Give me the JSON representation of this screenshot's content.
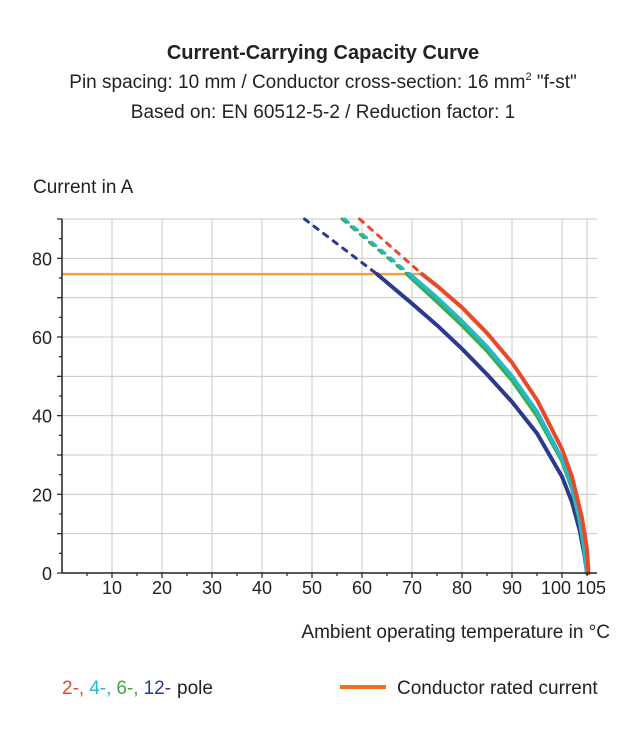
{
  "chart_data": {
    "type": "line",
    "title": "Current-Carrying Capacity Curve",
    "subtitle_line1": "Pin spacing: 10 mm / Conductor cross-section: 16 mm",
    "subtitle_line1_sup": "2",
    "subtitle_line1_tail": " \"f-st\"",
    "subtitle_line2": "Based on: EN 60512-5-2 / Reduction factor: 1",
    "ylabel": "Current in A",
    "xlabel": "Ambient operating temperature in °C",
    "xlim": [
      0,
      107
    ],
    "ylim": [
      0,
      90
    ],
    "x_ticks": [
      10,
      20,
      30,
      40,
      50,
      60,
      70,
      80,
      90,
      100,
      105
    ],
    "y_ticks": [
      0,
      20,
      40,
      60,
      80
    ],
    "grid": true,
    "series": [
      {
        "name": "2-",
        "color": "#e8492a",
        "dashed": [
          [
            59.5,
            90
          ],
          [
            72,
            76
          ]
        ],
        "solid": [
          [
            72,
            76
          ],
          [
            75,
            73
          ],
          [
            80,
            67.5
          ],
          [
            85,
            61
          ],
          [
            90,
            53.5
          ],
          [
            95,
            44
          ],
          [
            100,
            31.5
          ],
          [
            102,
            24.5
          ],
          [
            104,
            14
          ],
          [
            105,
            6
          ],
          [
            105.3,
            0
          ]
        ]
      },
      {
        "name": "4-",
        "color": "#27b7c8",
        "dashed": [
          [
            56.5,
            90
          ],
          [
            69.5,
            76
          ]
        ],
        "solid": [
          [
            69.5,
            76
          ],
          [
            75,
            70
          ],
          [
            80,
            64
          ],
          [
            85,
            57.5
          ],
          [
            90,
            50
          ],
          [
            95,
            41
          ],
          [
            100,
            29
          ],
          [
            102,
            22
          ],
          [
            103.5,
            14
          ],
          [
            104.5,
            6
          ],
          [
            105,
            0
          ]
        ]
      },
      {
        "name": "6-",
        "color": "#3daa48",
        "dashed": [
          [
            56,
            90
          ],
          [
            69,
            76
          ]
        ],
        "solid": [
          [
            69,
            76
          ],
          [
            75,
            69
          ],
          [
            80,
            63
          ],
          [
            85,
            56.5
          ],
          [
            90,
            49
          ],
          [
            95,
            40
          ],
          [
            100,
            28.5
          ],
          [
            102,
            21.5
          ],
          [
            103.5,
            13.5
          ],
          [
            104.5,
            5.5
          ],
          [
            105,
            0
          ]
        ]
      },
      {
        "name": "12-",
        "color": "#2b3a8f",
        "dashed": [
          [
            48.5,
            90
          ],
          [
            63,
            76
          ]
        ],
        "solid": [
          [
            63,
            76
          ],
          [
            70,
            68.5
          ],
          [
            75,
            63
          ],
          [
            80,
            57
          ],
          [
            85,
            50.5
          ],
          [
            90,
            43.5
          ],
          [
            95,
            35.5
          ],
          [
            100,
            24.5
          ],
          [
            102,
            18
          ],
          [
            103.5,
            11
          ],
          [
            104.5,
            4.5
          ],
          [
            105,
            0
          ]
        ]
      }
    ],
    "rated_current": {
      "name": "Conductor rated current",
      "color": "#f4a13a",
      "legend_color": "#f26e1f",
      "value": 76,
      "x_end": 72
    },
    "legend": {
      "pole_suffix": "pole",
      "pole_labels": [
        {
          "text": "2-,",
          "color": "#e8492a"
        },
        {
          "text": "4-,",
          "color": "#27b7c8"
        },
        {
          "text": "6-,",
          "color": "#3daa48"
        },
        {
          "text": "12-",
          "color": "#2b3a8f"
        }
      ]
    }
  }
}
